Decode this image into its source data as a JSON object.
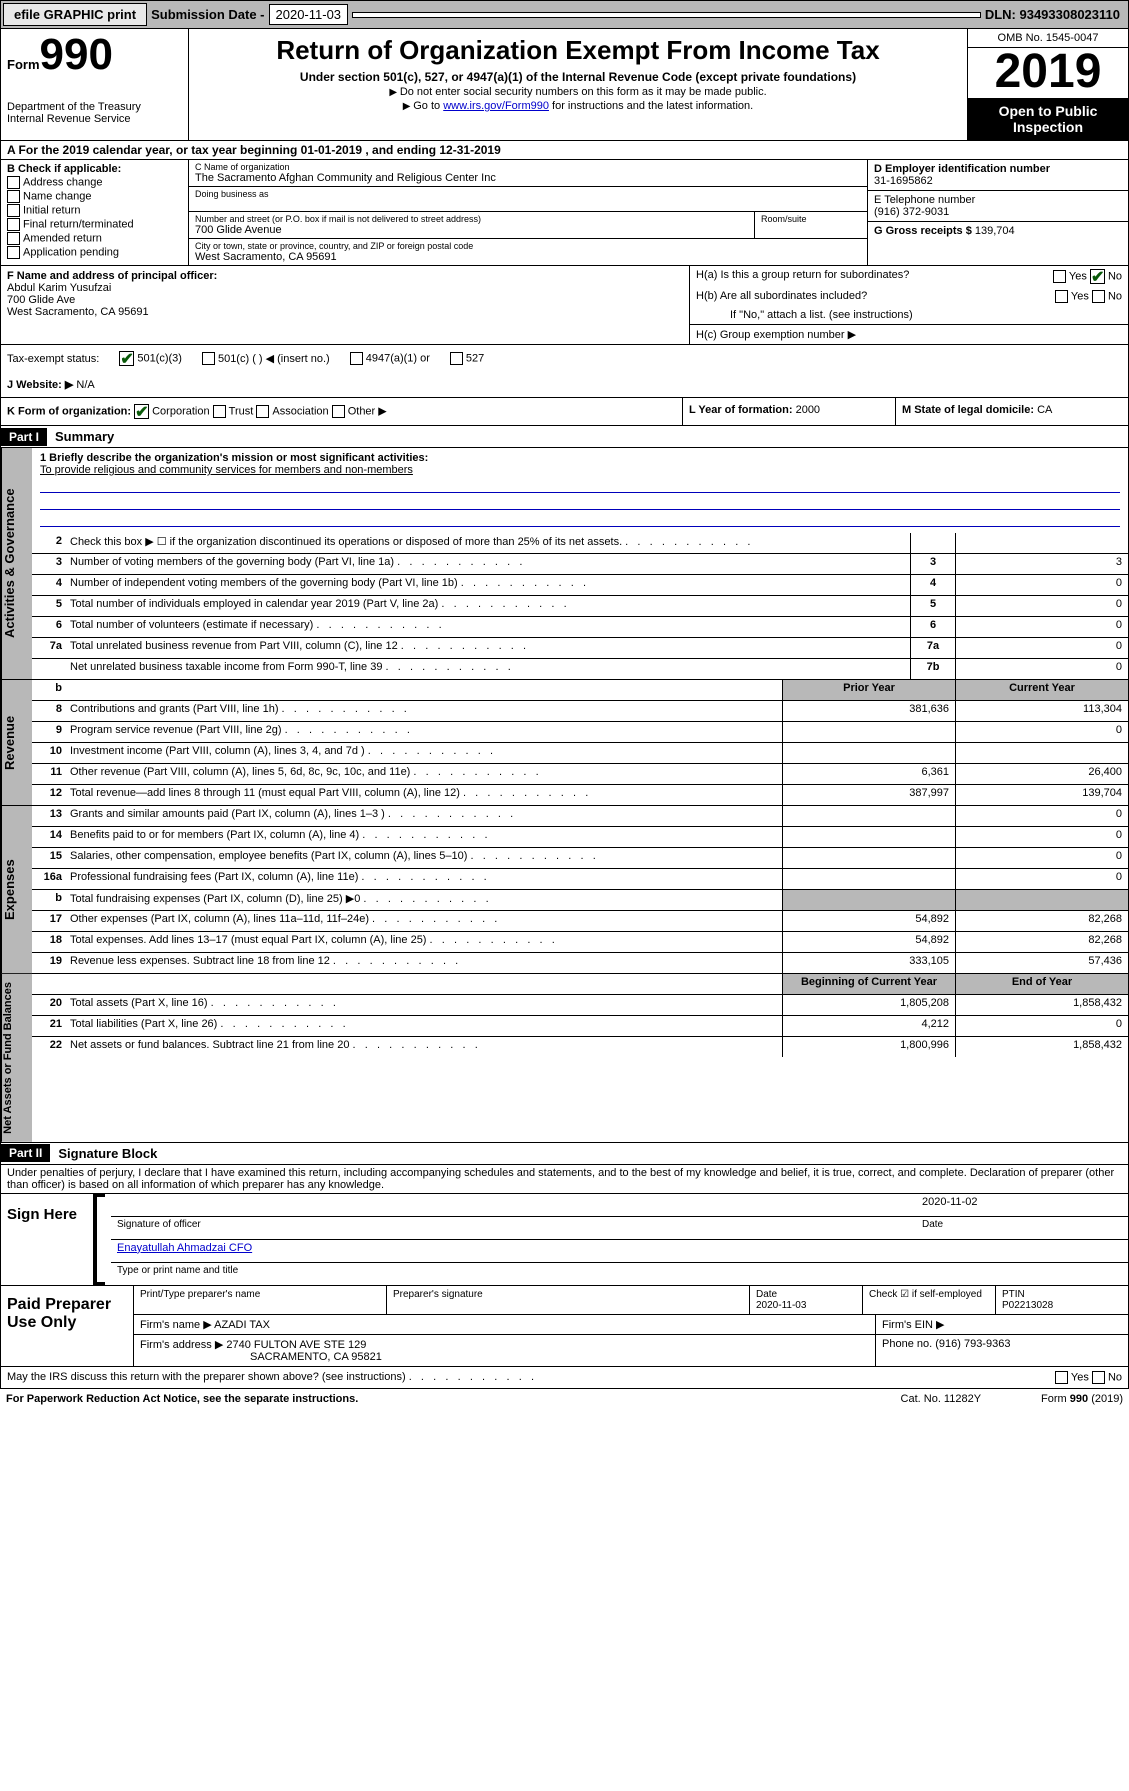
{
  "topbar": {
    "efile": "efile GRAPHIC print",
    "sub_label": "Submission Date - ",
    "sub_date": "2020-11-03",
    "dln": "DLN: 93493308023110"
  },
  "header": {
    "form_label": "Form",
    "form_num": "990",
    "dept": "Department of the Treasury\nInternal Revenue Service",
    "title": "Return of Organization Exempt From Income Tax",
    "subtitle": "Under section 501(c), 527, or 4947(a)(1) of the Internal Revenue Code (except private foundations)",
    "note1": "Do not enter social security numbers on this form as it may be made public.",
    "note2_pre": "Go to ",
    "note2_link": "www.irs.gov/Form990",
    "note2_post": " for instructions and the latest information.",
    "omb": "OMB No. 1545-0047",
    "year": "2019",
    "open": "Open to Public Inspection"
  },
  "period": "A For the 2019 calendar year, or tax year beginning 01-01-2019      , and ending 12-31-2019",
  "box_b": {
    "title": "B Check if applicable:",
    "items": [
      "Address change",
      "Name change",
      "Initial return",
      "Final return/terminated",
      "Amended return",
      "Application pending"
    ]
  },
  "box_c": {
    "lbl_name": "C Name of organization",
    "name": "The Sacramento Afghan Community and Religious Center Inc",
    "lbl_dba": "Doing business as",
    "lbl_addr": "Number and street (or P.O. box if mail is not delivered to street address)",
    "room": "Room/suite",
    "addr": "700 Glide Avenue",
    "lbl_city": "City or town, state or province, country, and ZIP or foreign postal code",
    "city": "West Sacramento, CA  95691"
  },
  "box_d": {
    "lbl": "D Employer identification number",
    "val": "31-1695862"
  },
  "box_e": {
    "lbl": "E Telephone number",
    "val": "(916) 372-9031"
  },
  "box_g": {
    "lbl": "G Gross receipts $",
    "val": "139,704"
  },
  "box_f": {
    "lbl": "F  Name and address of principal officer:",
    "name": "Abdul Karim Yusufzai",
    "addr": "700 Glide Ave",
    "city": "West Sacramento, CA  95691"
  },
  "box_h": {
    "a": "H(a)  Is this a group return for subordinates?",
    "b": "H(b)  Are all subordinates included?",
    "note": "If \"No,\" attach a list. (see instructions)",
    "c": "H(c)  Group exemption number ▶",
    "yes": "Yes",
    "no": "No"
  },
  "tax_status": {
    "lbl": "Tax-exempt status:",
    "opts": [
      "501(c)(3)",
      "501(c) (   ) ◀ (insert no.)",
      "4947(a)(1) or",
      "527"
    ]
  },
  "website": {
    "lbl": "J   Website: ▶",
    "val": "N/A"
  },
  "box_k": {
    "lbl": "K Form of organization:",
    "opts": [
      "Corporation",
      "Trust",
      "Association",
      "Other ▶"
    ]
  },
  "box_l": {
    "lbl": "L Year of formation:",
    "val": "2000"
  },
  "box_m": {
    "lbl": "M State of legal domicile:",
    "val": "CA"
  },
  "part1": {
    "hdr": "Part I",
    "title": "Summary"
  },
  "mission": {
    "lbl": "1  Briefly describe the organization's mission or most significant activities:",
    "txt": "To provide religious and community services for members and non-members"
  },
  "gov_lines": [
    {
      "n": "2",
      "t": "Check this box ▶ ☐  if the organization discontinued its operations or disposed of more than 25% of its net assets."
    },
    {
      "n": "3",
      "t": "Number of voting members of the governing body (Part VI, line 1a)",
      "box": "3",
      "v": "3"
    },
    {
      "n": "4",
      "t": "Number of independent voting members of the governing body (Part VI, line 1b)",
      "box": "4",
      "v": "0"
    },
    {
      "n": "5",
      "t": "Total number of individuals employed in calendar year 2019 (Part V, line 2a)",
      "box": "5",
      "v": "0"
    },
    {
      "n": "6",
      "t": "Total number of volunteers (estimate if necessary)",
      "box": "6",
      "v": "0"
    },
    {
      "n": "7a",
      "t": "Total unrelated business revenue from Part VIII, column (C), line 12",
      "box": "7a",
      "v": "0"
    },
    {
      "n": "",
      "t": "Net unrelated business taxable income from Form 990-T, line 39",
      "box": "7b",
      "v": "0"
    }
  ],
  "rev_hdr": {
    "n": "b",
    "prior": "Prior Year",
    "curr": "Current Year"
  },
  "rev_lines": [
    {
      "n": "8",
      "t": "Contributions and grants (Part VIII, line 1h)",
      "p": "381,636",
      "c": "113,304"
    },
    {
      "n": "9",
      "t": "Program service revenue (Part VIII, line 2g)",
      "p": "",
      "c": "0"
    },
    {
      "n": "10",
      "t": "Investment income (Part VIII, column (A), lines 3, 4, and 7d )",
      "p": "",
      "c": ""
    },
    {
      "n": "11",
      "t": "Other revenue (Part VIII, column (A), lines 5, 6d, 8c, 9c, 10c, and 11e)",
      "p": "6,361",
      "c": "26,400"
    },
    {
      "n": "12",
      "t": "Total revenue—add lines 8 through 11 (must equal Part VIII, column (A), line 12)",
      "p": "387,997",
      "c": "139,704"
    }
  ],
  "exp_lines": [
    {
      "n": "13",
      "t": "Grants and similar amounts paid (Part IX, column (A), lines 1–3 )",
      "p": "",
      "c": "0"
    },
    {
      "n": "14",
      "t": "Benefits paid to or for members (Part IX, column (A), line 4)",
      "p": "",
      "c": "0"
    },
    {
      "n": "15",
      "t": "Salaries, other compensation, employee benefits (Part IX, column (A), lines 5–10)",
      "p": "",
      "c": "0"
    },
    {
      "n": "16a",
      "t": "Professional fundraising fees (Part IX, column (A), line 11e)",
      "p": "",
      "c": "0"
    },
    {
      "n": "b",
      "t": "Total fundraising expenses (Part IX, column (D), line 25) ▶0",
      "nobox": true
    },
    {
      "n": "17",
      "t": "Other expenses (Part IX, column (A), lines 11a–11d, 11f–24e)",
      "p": "54,892",
      "c": "82,268"
    },
    {
      "n": "18",
      "t": "Total expenses. Add lines 13–17 (must equal Part IX, column (A), line 25)",
      "p": "54,892",
      "c": "82,268"
    },
    {
      "n": "19",
      "t": "Revenue less expenses. Subtract line 18 from line 12",
      "p": "333,105",
      "c": "57,436"
    }
  ],
  "na_hdr": {
    "beg": "Beginning of Current Year",
    "end": "End of Year"
  },
  "na_lines": [
    {
      "n": "20",
      "t": "Total assets (Part X, line 16)",
      "p": "1,805,208",
      "c": "1,858,432"
    },
    {
      "n": "21",
      "t": "Total liabilities (Part X, line 26)",
      "p": "4,212",
      "c": "0"
    },
    {
      "n": "22",
      "t": "Net assets or fund balances. Subtract line 21 from line 20",
      "p": "1,800,996",
      "c": "1,858,432"
    }
  ],
  "part2": {
    "hdr": "Part II",
    "title": "Signature Block"
  },
  "penalty": "Under penalties of perjury, I declare that I have examined this return, including accompanying schedules and statements, and to the best of my knowledge and belief, it is true, correct, and complete. Declaration of preparer (other than officer) is based on all information of which preparer has any knowledge.",
  "sign": {
    "lbl": "Sign Here",
    "date": "2020-11-02",
    "datelbl": "Date",
    "sig": "Signature of officer",
    "name": "Enayatullah Ahmadzai CFO",
    "typelbl": "Type or print name and title"
  },
  "paid": {
    "lbl": "Paid Preparer Use Only",
    "h1": "Print/Type preparer's name",
    "h2": "Preparer's signature",
    "h3": "Date",
    "h4": "Check ☑ if self-employed",
    "h5": "PTIN",
    "date": "2020-11-03",
    "ptin": "P02213028",
    "firm_lbl": "Firm's name   ▶",
    "firm": "AZADI TAX",
    "ein_lbl": "Firm's EIN ▶",
    "addr_lbl": "Firm's address ▶",
    "addr": "2740 FULTON AVE STE 129",
    "city": "SACRAMENTO, CA  95821",
    "phone_lbl": "Phone no.",
    "phone": "(916) 793-9363"
  },
  "footer": {
    "q": "May the IRS discuss this return with the preparer shown above? (see instructions)",
    "yes": "Yes",
    "no": "No",
    "pra": "For Paperwork Reduction Act Notice, see the separate instructions.",
    "cat": "Cat. No. 11282Y",
    "form": "Form 990 (2019)"
  }
}
